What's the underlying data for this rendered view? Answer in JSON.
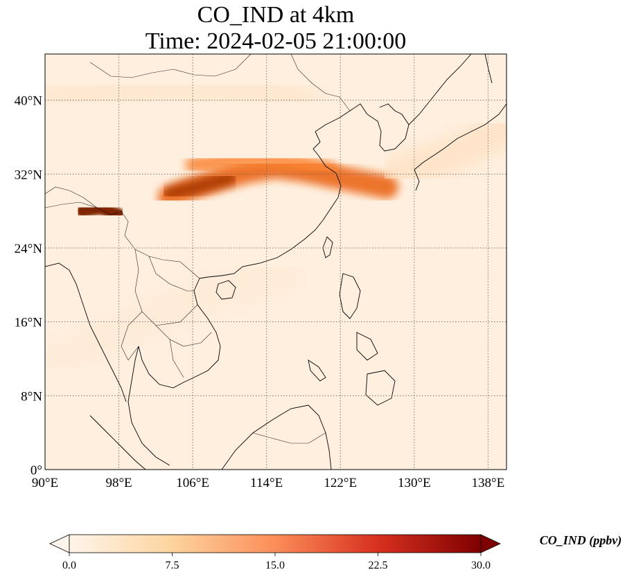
{
  "title_line1": "CO_IND at 4km",
  "title_line2": "Time: 2024-02-05 21:00:00",
  "map": {
    "extent": {
      "lon_min": 90,
      "lon_max": 140,
      "lat_min": 0,
      "lat_max": 45
    },
    "lon_ticks": [
      {
        "value": 90,
        "label": "90°E"
      },
      {
        "value": 98,
        "label": "98°E"
      },
      {
        "value": 106,
        "label": "106°E"
      },
      {
        "value": 114,
        "label": "114°E"
      },
      {
        "value": 122,
        "label": "122°E"
      },
      {
        "value": 130,
        "label": "130°E"
      },
      {
        "value": 138,
        "label": "138°E"
      }
    ],
    "lat_ticks": [
      {
        "value": 0,
        "label": "0°"
      },
      {
        "value": 8,
        "label": "8°N"
      },
      {
        "value": 16,
        "label": "16°N"
      },
      {
        "value": 24,
        "label": "24°N"
      },
      {
        "value": 32,
        "label": "32°N"
      },
      {
        "value": 40,
        "label": "40°N"
      }
    ],
    "gridlines": true,
    "background_value": 1.5,
    "plumes": [
      {
        "name": "central-china-plume",
        "points": [
          [
            103.5,
            29.5
          ],
          [
            106,
            30.5
          ],
          [
            109,
            31.5
          ],
          [
            112,
            32.3
          ],
          [
            115,
            32.8
          ],
          [
            118,
            32.4
          ],
          [
            121,
            31.8
          ],
          [
            124,
            31.2
          ],
          [
            127,
            30.6
          ]
        ],
        "value": 20
      },
      {
        "name": "yangtze-band",
        "points": [
          [
            106,
            33
          ],
          [
            110,
            33.5
          ],
          [
            114,
            33.6
          ],
          [
            118,
            33.2
          ],
          [
            121,
            32.5
          ]
        ],
        "value": 16
      },
      {
        "name": "tibet-hotspot",
        "points": [
          [
            94,
            28
          ],
          [
            96,
            28.3
          ],
          [
            98,
            27.6
          ]
        ],
        "value": 30
      },
      {
        "name": "sichuan-core",
        "points": [
          [
            103.5,
            29.8
          ],
          [
            106.5,
            30.6
          ],
          [
            110,
            31.6
          ]
        ],
        "value": 26
      },
      {
        "name": "northern-haze",
        "points": [
          [
            90,
            40
          ],
          [
            96,
            40.5
          ],
          [
            104,
            41.5
          ],
          [
            112,
            41
          ],
          [
            118,
            40
          ]
        ],
        "value": 4
      },
      {
        "name": "japan-haze",
        "points": [
          [
            128,
            32
          ],
          [
            134,
            34
          ],
          [
            140,
            37
          ]
        ],
        "value": 5
      },
      {
        "name": "southern-streak",
        "points": [
          [
            92,
            12
          ],
          [
            100,
            16
          ],
          [
            108,
            19
          ],
          [
            116,
            21
          ]
        ],
        "value": 3
      }
    ]
  },
  "colorbar": {
    "label": "CO_IND (ppbv)",
    "min": 0,
    "max": 30,
    "extend": "both",
    "ticks": [
      {
        "value": 0,
        "label": "0.0"
      },
      {
        "value": 7.5,
        "label": "7.5"
      },
      {
        "value": 15,
        "label": "15.0"
      },
      {
        "value": 22.5,
        "label": "22.5"
      },
      {
        "value": 30,
        "label": "30.0"
      }
    ],
    "colormap": [
      "#fff5eb",
      "#fee6ce",
      "#fdd0a2",
      "#fdae6b",
      "#fd8d3c",
      "#f16913",
      "#d94801",
      "#a63603",
      "#7f2704"
    ],
    "cmap_name": "OrRd"
  }
}
